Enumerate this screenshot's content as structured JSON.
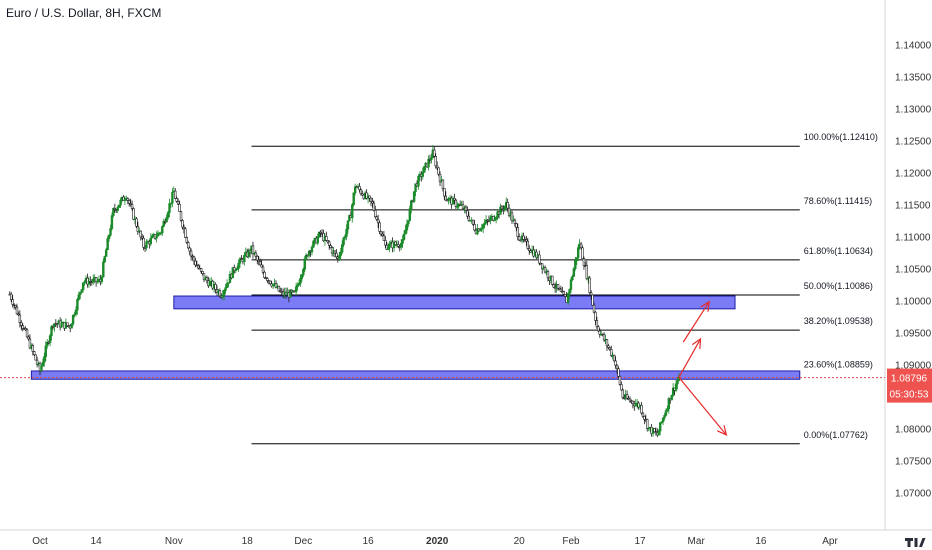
{
  "header": {
    "title": "Euro / U.S. Dollar, 8H, FXCM"
  },
  "colors": {
    "up": "#1b8a2a",
    "down": "#1a1a1a",
    "fib_line": "#000000",
    "zone_fill": "#7b7bf5",
    "zone_stroke": "#1e1ea8",
    "price_line": "#e24a4a",
    "arrow": "#e52b2b",
    "price_badge": "#ef5350",
    "axis_text": "#333333"
  },
  "chart_data": {
    "type": "candlestick",
    "symbol": "Euro / U.S. Dollar",
    "timeframe": "8H",
    "source": "FXCM",
    "ylim": [
      1.0665,
      1.1435
    ],
    "yticks": [
      "1.07000",
      "1.07500",
      "1.08000",
      "1.08500",
      "1.09000",
      "1.09500",
      "1.10000",
      "1.10500",
      "1.11000",
      "1.11500",
      "1.12000",
      "1.12500",
      "1.13000",
      "1.13500",
      "1.14000"
    ],
    "xticks": [
      {
        "label": "Oct",
        "date": "2019-10-01"
      },
      {
        "label": "14",
        "date": "2019-10-14"
      },
      {
        "label": "Nov",
        "date": "2019-11-01"
      },
      {
        "label": "18",
        "date": "2019-11-18"
      },
      {
        "label": "Dec",
        "date": "2019-12-01"
      },
      {
        "label": "16",
        "date": "2019-12-16"
      },
      {
        "label": "2020",
        "date": "2020-01-01"
      },
      {
        "label": "20",
        "date": "2020-01-20"
      },
      {
        "label": "Feb",
        "date": "2020-02-01"
      },
      {
        "label": "17",
        "date": "2020-02-17"
      },
      {
        "label": "Mar",
        "date": "2020-03-01"
      },
      {
        "label": "16",
        "date": "2020-03-16"
      },
      {
        "label": "Apr",
        "date": "2020-04-01"
      }
    ],
    "price_path": [
      [
        "2019-09-24",
        1.101
      ],
      [
        "2019-09-27",
        1.096
      ],
      [
        "2019-10-01",
        1.089
      ],
      [
        "2019-10-04",
        1.0965
      ],
      [
        "2019-10-08",
        1.096
      ],
      [
        "2019-10-11",
        1.103
      ],
      [
        "2019-10-15",
        1.103
      ],
      [
        "2019-10-18",
        1.114
      ],
      [
        "2019-10-21",
        1.1165
      ],
      [
        "2019-10-25",
        1.1085
      ],
      [
        "2019-10-29",
        1.1108
      ],
      [
        "2019-11-01",
        1.117
      ],
      [
        "2019-11-05",
        1.107
      ],
      [
        "2019-11-08",
        1.1035
      ],
      [
        "2019-11-12",
        1.101
      ],
      [
        "2019-11-15",
        1.105
      ],
      [
        "2019-11-19",
        1.108
      ],
      [
        "2019-11-22",
        1.104
      ],
      [
        "2019-11-26",
        1.101
      ],
      [
        "2019-11-29",
        1.101
      ],
      [
        "2019-12-02",
        1.1075
      ],
      [
        "2019-12-05",
        1.1105
      ],
      [
        "2019-12-09",
        1.1065
      ],
      [
        "2019-12-12",
        1.1135
      ],
      [
        "2019-12-13",
        1.118
      ],
      [
        "2019-12-17",
        1.115
      ],
      [
        "2019-12-20",
        1.1085
      ],
      [
        "2019-12-24",
        1.109
      ],
      [
        "2019-12-27",
        1.118
      ],
      [
        "2019-12-31",
        1.123
      ],
      [
        "2020-01-03",
        1.116
      ],
      [
        "2020-01-07",
        1.1145
      ],
      [
        "2020-01-10",
        1.111
      ],
      [
        "2020-01-14",
        1.113
      ],
      [
        "2020-01-17",
        1.115
      ],
      [
        "2020-01-20",
        1.11
      ],
      [
        "2020-01-24",
        1.107
      ],
      [
        "2020-01-28",
        1.1025
      ],
      [
        "2020-01-31",
        1.1
      ],
      [
        "2020-02-03",
        1.109
      ],
      [
        "2020-02-05",
        1.103
      ],
      [
        "2020-02-07",
        1.096
      ],
      [
        "2020-02-11",
        1.091
      ],
      [
        "2020-02-13",
        1.085
      ],
      [
        "2020-02-17",
        1.0835
      ],
      [
        "2020-02-19",
        1.08
      ],
      [
        "2020-02-21",
        1.079
      ],
      [
        "2020-02-24",
        1.085
      ],
      [
        "2020-02-26",
        1.088
      ]
    ],
    "fibonacci": {
      "from_date": "2019-11-19",
      "to_date": "2020-03-25",
      "levels": [
        {
          "label": "100.00%(1.12410)",
          "price": 1.1241
        },
        {
          "label": "78.60%(1.11415)",
          "price": 1.11415
        },
        {
          "label": "61.80%(1.10634)",
          "price": 1.10634
        },
        {
          "label": "50.00%(1.10086)",
          "price": 1.10086
        },
        {
          "label": "38.20%(1.09538)",
          "price": 1.09538
        },
        {
          "label": "23.60%(1.08859)",
          "price": 1.08859
        },
        {
          "label": "0.00%(1.07762)",
          "price": 1.07762
        }
      ]
    },
    "zones": [
      {
        "from_date": "2019-11-01",
        "to_date": "2020-03-10",
        "top": 1.1007,
        "bottom": 1.0987
      },
      {
        "from_date": "2019-09-29",
        "to_date": "2020-03-25",
        "top": 1.089,
        "bottom": 1.0877
      }
    ],
    "arrows": [
      {
        "points": [
          [
            "2020-02-26",
            1.088
          ],
          [
            "2020-03-02",
            1.094
          ]
        ]
      },
      {
        "points": [
          [
            "2020-02-27",
            1.0935
          ],
          [
            "2020-03-04",
            1.0998
          ]
        ]
      },
      {
        "points": [
          [
            "2020-02-26",
            1.088
          ],
          [
            "2020-03-08",
            1.079
          ]
        ]
      }
    ],
    "last_price": {
      "value": "1.08796",
      "price": 1.08796,
      "countdown": "05:30:53"
    }
  }
}
